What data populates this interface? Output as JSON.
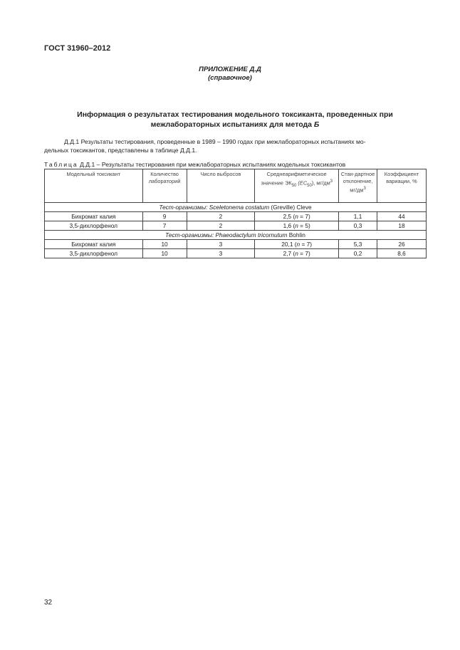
{
  "header": {
    "doc_code": "ГОСТ 31960–2012"
  },
  "appendix": {
    "title": "ПРИЛОЖЕНИЕ Д.Д",
    "note": "(справочное)"
  },
  "section_title": {
    "line1": "Информация о результатах тестирования модельного токсиканта, проведенных при",
    "line2_prefix": "межлабораторных испытаниях для метода ",
    "line2_method": "Б"
  },
  "paragraph": {
    "line1": "Д.Д.1 Результаты тестирования, проведенные в 1989 – 1990 годах при межлабораторных испытаниях мо-",
    "line2": "дельных токсикантов, представлены в таблице Д.Д.1."
  },
  "table": {
    "caption_label": "Таблица",
    "caption_text": " Д.Д.1 – Результаты тестирования при межлабораторных испытаниях модельных токсикантов",
    "headers": {
      "c1": "Модельный токсикант",
      "c2": "Количество лабораторий",
      "c3": "Число выбросов",
      "c4_a": "Среднеарифметическое значение ЭК",
      "c4_sub": "50",
      "c4_b": " (EC",
      "c4_sub2": "50",
      "c4_c": "), мг/дм",
      "c4_sup": "3",
      "c5": "Стан-дартное отклонение, мг/дм",
      "c5_sup": "3",
      "c6": "Коэффициент вариации, %"
    },
    "groups": [
      {
        "prefix": "Тест-организмы: ",
        "species": "Sceletonema costatum",
        "suffix": " (Greville) Cleve",
        "rows": [
          {
            "toxicant": "Бихромат калия",
            "labs": "9",
            "outliers": "2",
            "mean": "2,5",
            "n": "7",
            "sd": "1,1",
            "cv": "44"
          },
          {
            "toxicant": "3,5-дихлорфенол",
            "labs": "7",
            "outliers": "2",
            "mean": "1,6",
            "n": "5",
            "sd": "0,3",
            "cv": "18"
          }
        ]
      },
      {
        "prefix": "Тест-организмы: ",
        "species": "Phaeodactylum tricornutum",
        "suffix": " Bohlin",
        "rows": [
          {
            "toxicant": "Бихромат калия",
            "labs": "10",
            "outliers": "3",
            "mean": "20,1",
            "n": "7",
            "sd": "5,3",
            "cv": "26"
          },
          {
            "toxicant": "3,5-дихлорфенол",
            "labs": "10",
            "outliers": "3",
            "mean": "2,7",
            "n": "7",
            "sd": "0,2",
            "cv": "8,6"
          }
        ]
      }
    ]
  },
  "footer": {
    "page_number": "32"
  }
}
